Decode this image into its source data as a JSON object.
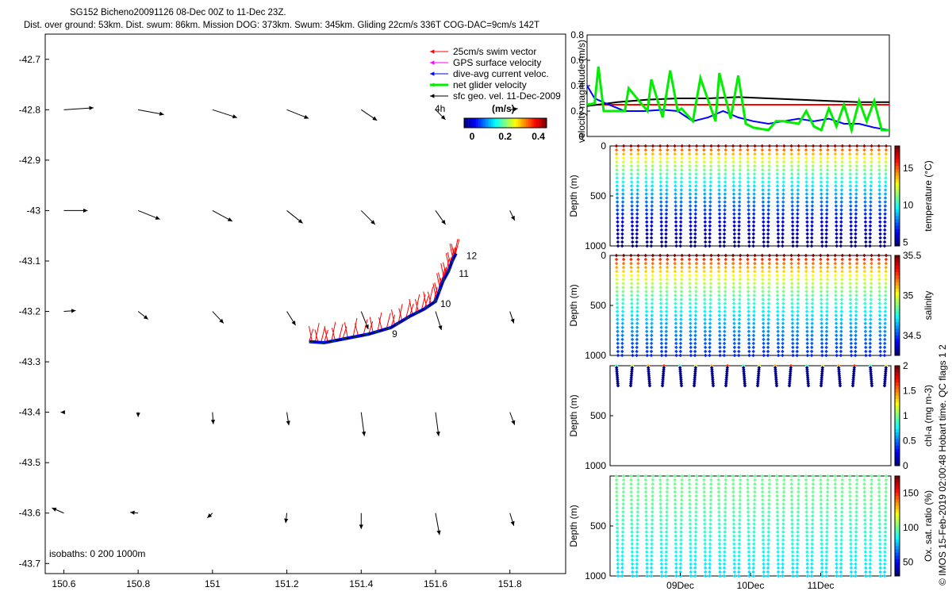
{
  "title": {
    "line1": "SG152 Bicheno20091126 08-Dec 00Z to 11-Dec 23Z.",
    "line2": "Dist. over ground: 53km. Dist. swum: 86km. Mission DOG: 373km. Swum: 345km. Gliding 22cm/s 336T COG-DAC=9cm/s 142T"
  },
  "credit": "© IMOS 15-Feb-2019 02:00:48 Hobart time. QC flags 1  2",
  "colors": {
    "swim_vector": "#ff0000",
    "gps_surface": "#ff00ff",
    "dive_avg_current": "#0000ff",
    "net_glider": "#00ee00",
    "geostrophic": "#000000"
  },
  "chart_data": [
    {
      "type": "map-quiver",
      "xlim": [
        150.55,
        151.95
      ],
      "ylim": [
        -43.72,
        -42.65
      ],
      "x_ticks": [
        "150.6",
        "150.8",
        "151",
        "151.2",
        "151.4",
        "151.6",
        "151.8"
      ],
      "x_tick_values": [
        150.6,
        150.8,
        151.0,
        151.2,
        151.4,
        151.6,
        151.8
      ],
      "y_ticks": [
        "-42.7",
        "-42.8",
        "-42.9",
        "-43",
        "-43.1",
        "-43.2",
        "-43.3",
        "-43.4",
        "-43.5",
        "-43.6",
        "-43.7"
      ],
      "y_tick_values": [
        -42.7,
        -42.8,
        -42.9,
        -43.0,
        -43.1,
        -43.2,
        -43.3,
        -43.4,
        -43.5,
        -43.6,
        -43.7
      ],
      "legend": {
        "entries": [
          "25cm/s swim vector",
          "GPS surface velocity",
          "dive-avg current veloc.",
          "net glider velocity",
          "sfc geo. vel. 11-Dec-2009"
        ],
        "scale_label": "4h",
        "colorbar_unit": "(m/s)",
        "colorbar_ticks": [
          "0",
          "0.2",
          "0.4"
        ]
      },
      "isobaths_label": "isobaths: 0   200  1000m",
      "track_labels": [
        "9",
        "10",
        "11",
        "12"
      ],
      "track_label_points": [
        [
          151.47,
          -43.245
        ],
        [
          151.6,
          -43.185
        ],
        [
          151.65,
          -43.125
        ],
        [
          151.67,
          -43.09
        ]
      ],
      "track_points": [
        [
          151.26,
          -43.26
        ],
        [
          151.3,
          -43.262
        ],
        [
          151.35,
          -43.255
        ],
        [
          151.42,
          -43.245
        ],
        [
          151.48,
          -43.232
        ],
        [
          151.53,
          -43.21
        ],
        [
          151.57,
          -43.195
        ],
        [
          151.6,
          -43.18
        ],
        [
          151.61,
          -43.16
        ],
        [
          151.62,
          -43.14
        ],
        [
          151.635,
          -43.12
        ],
        [
          151.645,
          -43.1
        ],
        [
          151.655,
          -43.085
        ]
      ],
      "geostrophic_vectors": [
        {
          "lon": 150.6,
          "lat": -42.8,
          "u": 0.075,
          "v": 0.005
        },
        {
          "lon": 150.8,
          "lat": -42.8,
          "u": 0.065,
          "v": -0.012
        },
        {
          "lon": 151.0,
          "lat": -42.8,
          "u": 0.062,
          "v": -0.02
        },
        {
          "lon": 151.2,
          "lat": -42.8,
          "u": 0.055,
          "v": -0.022
        },
        {
          "lon": 151.4,
          "lat": -42.8,
          "u": 0.04,
          "v": -0.027
        },
        {
          "lon": 151.6,
          "lat": -42.8,
          "u": 0.025,
          "v": -0.025
        },
        {
          "lon": 151.8,
          "lat": -42.8,
          "u": 0.02,
          "v": 0.003
        },
        {
          "lon": 150.6,
          "lat": -43.0,
          "u": 0.06,
          "v": 0.0
        },
        {
          "lon": 150.8,
          "lat": -43.0,
          "u": 0.055,
          "v": -0.022
        },
        {
          "lon": 151.0,
          "lat": -43.0,
          "u": 0.05,
          "v": -0.027
        },
        {
          "lon": 151.2,
          "lat": -43.0,
          "u": 0.04,
          "v": -0.032
        },
        {
          "lon": 151.4,
          "lat": -43.0,
          "u": 0.035,
          "v": -0.035
        },
        {
          "lon": 151.6,
          "lat": -43.0,
          "u": 0.025,
          "v": -0.035
        },
        {
          "lon": 151.8,
          "lat": -43.0,
          "u": 0.012,
          "v": -0.025
        },
        {
          "lon": 150.6,
          "lat": -43.2,
          "u": 0.03,
          "v": 0.002
        },
        {
          "lon": 150.8,
          "lat": -43.2,
          "u": 0.025,
          "v": -0.02
        },
        {
          "lon": 151.0,
          "lat": -43.2,
          "u": 0.028,
          "v": -0.03
        },
        {
          "lon": 151.2,
          "lat": -43.2,
          "u": 0.022,
          "v": -0.035
        },
        {
          "lon": 151.4,
          "lat": -43.2,
          "u": 0.018,
          "v": -0.045
        },
        {
          "lon": 151.6,
          "lat": -43.2,
          "u": 0.015,
          "v": -0.047
        },
        {
          "lon": 151.8,
          "lat": -43.2,
          "u": 0.01,
          "v": -0.03
        },
        {
          "lon": 150.6,
          "lat": -43.4,
          "u": -0.008,
          "v": 0.0
        },
        {
          "lon": 150.8,
          "lat": -43.4,
          "u": 0.0,
          "v": -0.012
        },
        {
          "lon": 151.0,
          "lat": -43.4,
          "u": 0.002,
          "v": -0.03
        },
        {
          "lon": 151.2,
          "lat": -43.4,
          "u": 0.005,
          "v": -0.033
        },
        {
          "lon": 151.4,
          "lat": -43.4,
          "u": 0.008,
          "v": -0.06
        },
        {
          "lon": 151.6,
          "lat": -43.4,
          "u": 0.008,
          "v": -0.06
        },
        {
          "lon": 151.8,
          "lat": -43.4,
          "u": 0.012,
          "v": -0.032
        },
        {
          "lon": 150.6,
          "lat": -43.6,
          "u": -0.03,
          "v": 0.013
        },
        {
          "lon": 150.8,
          "lat": -43.6,
          "u": -0.02,
          "v": 0.002
        },
        {
          "lon": 151.0,
          "lat": -43.6,
          "u": -0.013,
          "v": -0.012
        },
        {
          "lon": 151.2,
          "lat": -43.6,
          "u": -0.003,
          "v": -0.025
        },
        {
          "lon": 151.4,
          "lat": -43.6,
          "u": 0.0,
          "v": -0.04
        },
        {
          "lon": 151.6,
          "lat": -43.6,
          "u": 0.01,
          "v": -0.055
        },
        {
          "lon": 151.8,
          "lat": -43.6,
          "u": 0.01,
          "v": -0.032
        }
      ]
    },
    {
      "type": "line",
      "ylabel": "velocity magnitude (m/s)",
      "ylim": [
        0,
        0.8
      ],
      "y_ticks": [
        "0",
        "0.2",
        "0.4",
        "0.6",
        "0.8"
      ],
      "xlim": [
        0,
        4
      ],
      "series": [
        {
          "color": "#ff0000",
          "x": [
            0,
            4
          ],
          "y": [
            0.25,
            0.25
          ]
        },
        {
          "color": "#000000",
          "x": [
            0,
            0.4,
            0.8,
            1.2,
            1.6,
            2.0,
            2.4,
            2.8,
            3.2,
            3.6,
            4.0
          ],
          "y": [
            0.24,
            0.27,
            0.29,
            0.3,
            0.3,
            0.31,
            0.3,
            0.29,
            0.28,
            0.27,
            0.27
          ]
        },
        {
          "color": "#0000ff",
          "x": [
            0,
            0.1,
            0.25,
            0.5,
            0.75,
            1.0,
            1.2,
            1.4,
            1.6,
            1.8,
            2.0,
            2.2,
            2.4,
            2.6,
            2.8,
            3.0,
            3.2,
            3.4,
            3.6,
            3.8,
            4.0
          ],
          "y": [
            0.4,
            0.3,
            0.26,
            0.2,
            0.2,
            0.21,
            0.2,
            0.12,
            0.15,
            0.2,
            0.15,
            0.12,
            0.1,
            0.12,
            0.14,
            0.12,
            0.14,
            0.1,
            0.1,
            0.07,
            0.05
          ]
        },
        {
          "color": "#00ee00",
          "x": [
            0,
            0.1,
            0.15,
            0.22,
            0.3,
            0.5,
            0.55,
            0.8,
            0.85,
            1.0,
            1.1,
            1.2,
            1.25,
            1.4,
            1.5,
            1.7,
            1.75,
            1.9,
            2.0,
            2.1,
            2.2,
            2.4,
            2.5,
            2.6,
            2.8,
            2.9,
            3.0,
            3.1,
            3.2,
            3.3,
            3.4,
            3.5,
            3.6,
            3.7,
            3.8,
            3.9,
            4.0
          ],
          "y": [
            0.25,
            0.26,
            0.55,
            0.2,
            0.2,
            0.2,
            0.38,
            0.2,
            0.45,
            0.15,
            0.52,
            0.2,
            0.22,
            0.12,
            0.46,
            0.12,
            0.5,
            0.14,
            0.48,
            0.1,
            0.07,
            0.05,
            0.12,
            0.12,
            0.1,
            0.2,
            0.08,
            0.05,
            0.22,
            0.08,
            0.25,
            0.05,
            0.28,
            0.12,
            0.28,
            0.05,
            0.05
          ]
        }
      ]
    },
    {
      "type": "scatter",
      "variable": "temperature",
      "ylabel": "Depth (m)",
      "ylim": [
        0,
        1000
      ],
      "y_ticks": [
        "0",
        "500",
        "1000"
      ],
      "colorbar_label": "temperature (°C)",
      "colorbar_range": [
        4.5,
        18
      ],
      "colorbar_ticks": [
        "15",
        "10",
        "5"
      ],
      "colorbar_tick_values": [
        15,
        10,
        5
      ],
      "surface_value": 17.5,
      "bottom_value": 4.5,
      "max_depth": 1000,
      "profiles": 38
    },
    {
      "type": "scatter",
      "variable": "salinity",
      "ylabel": "Depth (m)",
      "ylim": [
        0,
        1000
      ],
      "y_ticks": [
        "0",
        "500",
        "1000"
      ],
      "colorbar_label": "salinity",
      "colorbar_range": [
        34.25,
        35.5
      ],
      "colorbar_ticks": [
        "35.5",
        "35",
        "34.5"
      ],
      "colorbar_tick_values": [
        35.5,
        35.0,
        34.5
      ],
      "surface_value": 35.5,
      "bottom_value": 34.45,
      "max_depth": 1000,
      "profiles": 38
    },
    {
      "type": "scatter",
      "variable": "chl-a",
      "ylabel": "Depth (m)",
      "ylim": [
        0,
        1000
      ],
      "y_ticks": [
        "500",
        "1000"
      ],
      "colorbar_label": "chl-a (mg m-3)",
      "colorbar_range": [
        0,
        2
      ],
      "colorbar_ticks": [
        "2",
        "1.5",
        "1",
        "0.5",
        "0"
      ],
      "colorbar_tick_values": [
        2,
        1.5,
        1,
        0.5,
        0
      ],
      "max_depth": 200,
      "profiles": 18
    },
    {
      "type": "scatter",
      "variable": "oxygen",
      "ylabel": "Depth (m)",
      "ylim": [
        0,
        1000
      ],
      "y_ticks": [
        "500",
        "1000"
      ],
      "colorbar_label": "Ox. sat. ratio (%)",
      "colorbar_range": [
        30,
        175
      ],
      "colorbar_ticks": [
        "150",
        "100",
        "50"
      ],
      "colorbar_tick_values": [
        150,
        100,
        50
      ],
      "surface_value": 100,
      "bottom_value": 80,
      "max_depth": 1000,
      "profiles": 38,
      "x_ticks": [
        "09Dec",
        "10Dec",
        "11Dec"
      ],
      "x_tick_values": [
        1,
        2,
        3
      ]
    }
  ]
}
